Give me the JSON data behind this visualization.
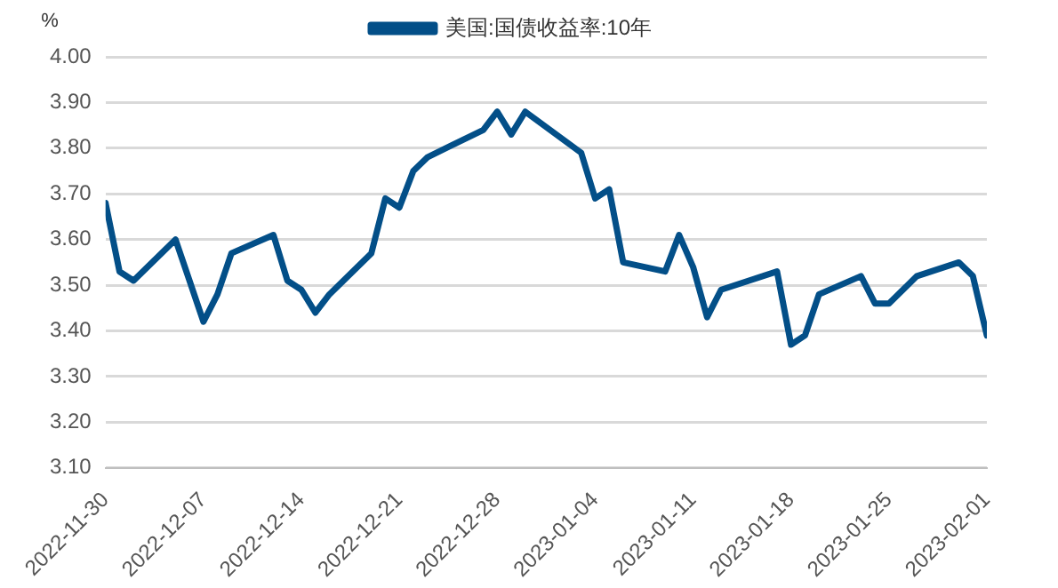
{
  "chart_data": {
    "type": "line",
    "ylabel": "%",
    "legend": "top",
    "xlim": [
      "2022-11-30",
      "2023-02-01"
    ],
    "xticks": [
      "2022-11-30",
      "2022-12-07",
      "2022-12-14",
      "2022-12-21",
      "2022-12-28",
      "2023-01-04",
      "2023-01-11",
      "2023-01-18",
      "2023-01-25",
      "2023-02-01"
    ],
    "ylim": [
      3.1,
      4.0
    ],
    "yticks": [
      {
        "value": 3.1,
        "label": "3.10"
      },
      {
        "value": 3.2,
        "label": "3.20"
      },
      {
        "value": 3.3,
        "label": "3.30"
      },
      {
        "value": 3.4,
        "label": "3.40"
      },
      {
        "value": 3.5,
        "label": "3.50"
      },
      {
        "value": 3.6,
        "label": "3.60"
      },
      {
        "value": 3.7,
        "label": "3.70"
      },
      {
        "value": 3.8,
        "label": "3.80"
      },
      {
        "value": 3.9,
        "label": "3.90"
      },
      {
        "value": 4.0,
        "label": "4.00"
      }
    ],
    "grid": "y",
    "marker": "none",
    "line_style": "solid",
    "series": [
      {
        "name": "美国:国债收益率:10年",
        "color": "#034f88",
        "x": [
          "2022-11-30",
          "2022-12-01",
          "2022-12-02",
          "2022-12-05",
          "2022-12-06",
          "2022-12-07",
          "2022-12-08",
          "2022-12-09",
          "2022-12-12",
          "2022-12-13",
          "2022-12-14",
          "2022-12-15",
          "2022-12-16",
          "2022-12-19",
          "2022-12-20",
          "2022-12-21",
          "2022-12-22",
          "2022-12-23",
          "2022-12-27",
          "2022-12-28",
          "2022-12-29",
          "2022-12-30",
          "2023-01-03",
          "2023-01-04",
          "2023-01-05",
          "2023-01-06",
          "2023-01-09",
          "2023-01-10",
          "2023-01-11",
          "2023-01-12",
          "2023-01-13",
          "2023-01-17",
          "2023-01-18",
          "2023-01-19",
          "2023-01-20",
          "2023-01-23",
          "2023-01-24",
          "2023-01-25",
          "2023-01-26",
          "2023-01-27",
          "2023-01-30",
          "2023-01-31",
          "2023-02-01"
        ],
        "values": [
          3.68,
          3.53,
          3.51,
          3.6,
          3.51,
          3.42,
          3.48,
          3.57,
          3.61,
          3.51,
          3.49,
          3.44,
          3.48,
          3.57,
          3.69,
          3.67,
          3.75,
          3.78,
          3.84,
          3.88,
          3.83,
          3.88,
          3.79,
          3.69,
          3.71,
          3.55,
          3.53,
          3.61,
          3.54,
          3.43,
          3.49,
          3.53,
          3.37,
          3.39,
          3.48,
          3.52,
          3.46,
          3.46,
          3.49,
          3.52,
          3.55,
          3.52,
          3.39
        ]
      }
    ]
  }
}
